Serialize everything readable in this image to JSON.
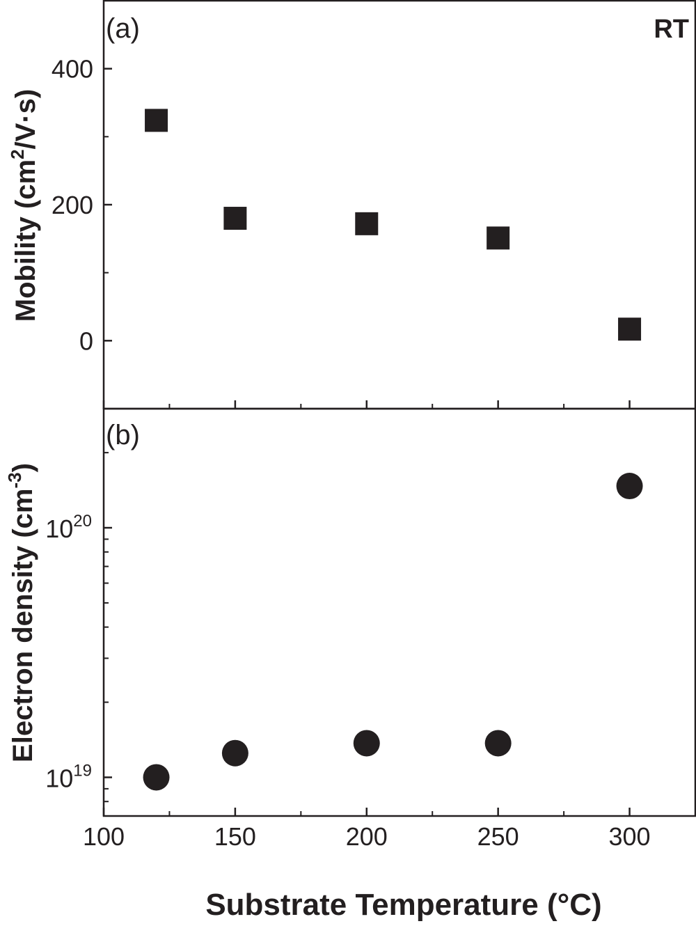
{
  "chart_data": [
    {
      "panel_label": "(a)",
      "type": "scatter",
      "annotation": "RT",
      "title": "",
      "xlabel": "Substrate Temperature (°C)",
      "ylabel": "Mobility (cm²/V·s)",
      "ylabel_parts": {
        "pre": "Mobility (cm",
        "sup": "2",
        "post": "/V·s)"
      },
      "xlim": [
        100,
        325
      ],
      "ylim": [
        -100,
        500
      ],
      "yscale": "linear",
      "yticks": [
        0,
        200,
        400
      ],
      "ytick_labels": [
        "0",
        "200",
        "400"
      ],
      "yminor": [
        100,
        300
      ],
      "marker": "square",
      "x": [
        120,
        150,
        200,
        250,
        300
      ],
      "y": [
        324,
        180,
        172,
        151,
        17
      ],
      "grid": false
    },
    {
      "panel_label": "(b)",
      "type": "scatter",
      "title": "",
      "xlabel": "Substrate Temperature (°C)",
      "ylabel": "Electron density (cm⁻³)",
      "ylabel_parts": {
        "pre": "Electron density (cm",
        "sup": "-3",
        "post": ")"
      },
      "xlim": [
        100,
        325
      ],
      "ylim": [
        7e+18,
        3e+20
      ],
      "yscale": "log",
      "yticks": [
        1e+19,
        1e+20
      ],
      "ytick_labels": [
        {
          "base": "10",
          "exp": "19"
        },
        {
          "base": "10",
          "exp": "20"
        }
      ],
      "marker": "circle",
      "x": [
        120,
        150,
        200,
        250,
        300
      ],
      "y": [
        1e+19,
        1.25e+19,
        1.37e+19,
        1.37e+19,
        1.47e+20
      ],
      "grid": false
    }
  ],
  "x_axis": {
    "label": "Substrate Temperature (°C)",
    "ticks": [
      100,
      150,
      200,
      250,
      300
    ],
    "tick_labels": [
      "100",
      "150",
      "200",
      "250",
      "300"
    ],
    "minor": [
      125,
      175,
      225,
      275
    ]
  },
  "colors": {
    "ink": "#231f20",
    "background": "#ffffff"
  }
}
